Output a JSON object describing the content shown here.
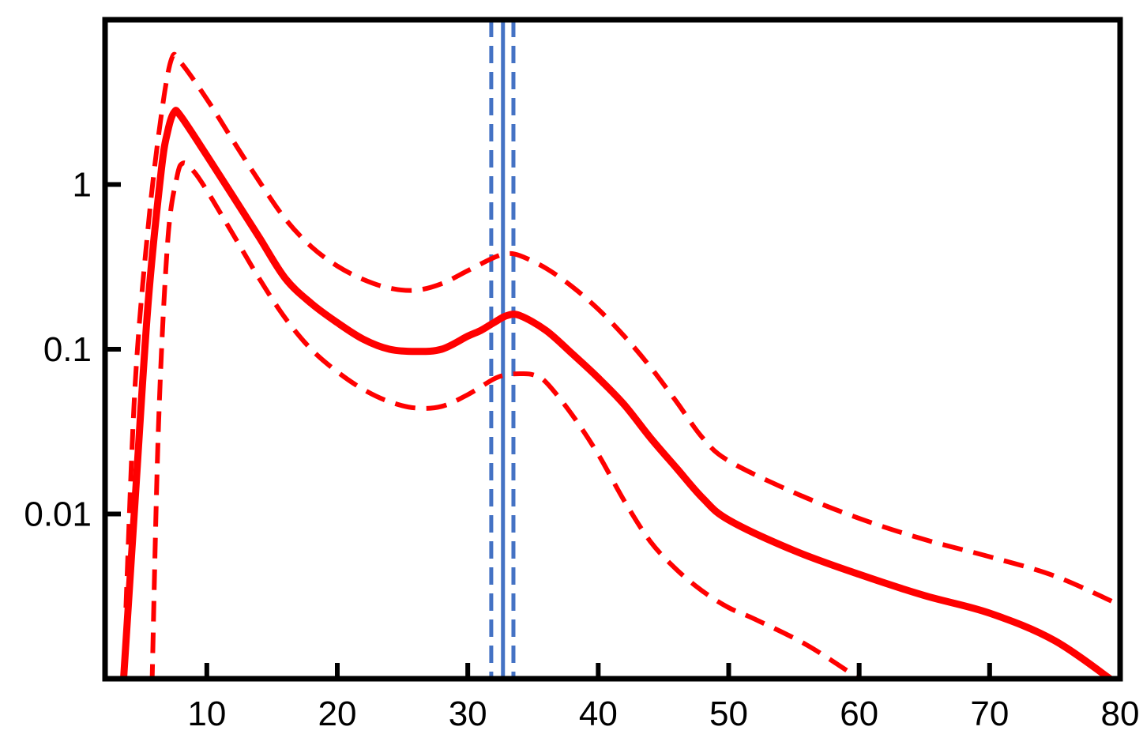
{
  "chart_data": {
    "type": "line",
    "title": "",
    "xlabel": "",
    "ylabel": "",
    "xscale": "linear",
    "yscale": "log",
    "xlim": [
      2.2,
      80
    ],
    "ylim": [
      0.001,
      10
    ],
    "grid": false,
    "x_ticks": [
      {
        "value": 10,
        "label": "10"
      },
      {
        "value": 20,
        "label": "20"
      },
      {
        "value": 30,
        "label": "30"
      },
      {
        "value": 40,
        "label": "40"
      },
      {
        "value": 50,
        "label": "50"
      },
      {
        "value": 60,
        "label": "60"
      },
      {
        "value": 70,
        "label": "70"
      },
      {
        "value": 80,
        "label": "80"
      }
    ],
    "y_ticks": [
      {
        "value": 0.01,
        "label": "0.01"
      },
      {
        "value": 0.1,
        "label": "0.1"
      },
      {
        "value": 1,
        "label": "1"
      }
    ],
    "series": [
      {
        "role": "central",
        "color": "#ff0000",
        "style": "solid",
        "points": [
          [
            3.6,
            0.00094
          ],
          [
            4.5,
            0.012
          ],
          [
            5.5,
            0.19
          ],
          [
            6.5,
            1.2
          ],
          [
            7,
            2.1
          ],
          [
            7.5,
            2.75
          ],
          [
            8,
            2.6
          ],
          [
            10,
            1.5
          ],
          [
            12,
            0.85
          ],
          [
            14,
            0.48
          ],
          [
            16,
            0.27
          ],
          [
            18,
            0.19
          ],
          [
            20,
            0.145
          ],
          [
            22,
            0.115
          ],
          [
            24,
            0.1
          ],
          [
            26,
            0.097
          ],
          [
            28,
            0.1
          ],
          [
            30,
            0.12
          ],
          [
            31,
            0.13
          ],
          [
            32,
            0.145
          ],
          [
            33,
            0.16
          ],
          [
            34,
            0.16
          ],
          [
            36,
            0.13
          ],
          [
            38,
            0.094
          ],
          [
            40,
            0.067
          ],
          [
            42,
            0.046
          ],
          [
            44,
            0.029
          ],
          [
            46,
            0.019
          ],
          [
            48,
            0.0125
          ],
          [
            50,
            0.0092
          ],
          [
            55,
            0.006
          ],
          [
            60,
            0.0043
          ],
          [
            65,
            0.0032
          ],
          [
            70,
            0.0025
          ],
          [
            75,
            0.0017
          ],
          [
            80,
            0.0009
          ]
        ]
      },
      {
        "role": "upper band",
        "color": "#ff0000",
        "style": "dashed",
        "points": [
          [
            3.8,
            0.0027
          ],
          [
            4.5,
            0.06
          ],
          [
            5.5,
            0.55
          ],
          [
            6.5,
            2.6
          ],
          [
            7.3,
            5.8
          ],
          [
            8,
            5.5
          ],
          [
            10,
            3.3
          ],
          [
            12,
            1.85
          ],
          [
            14,
            1.05
          ],
          [
            16,
            0.62
          ],
          [
            18,
            0.42
          ],
          [
            20,
            0.32
          ],
          [
            22,
            0.265
          ],
          [
            24,
            0.235
          ],
          [
            26,
            0.228
          ],
          [
            28,
            0.25
          ],
          [
            30,
            0.3
          ],
          [
            32,
            0.36
          ],
          [
            33,
            0.38
          ],
          [
            34,
            0.37
          ],
          [
            36,
            0.31
          ],
          [
            38,
            0.24
          ],
          [
            40,
            0.175
          ],
          [
            42,
            0.12
          ],
          [
            44,
            0.078
          ],
          [
            46,
            0.048
          ],
          [
            48,
            0.029
          ],
          [
            50,
            0.021
          ],
          [
            55,
            0.0135
          ],
          [
            60,
            0.0094
          ],
          [
            65,
            0.007
          ],
          [
            70,
            0.0055
          ],
          [
            75,
            0.0042
          ],
          [
            80,
            0.0028
          ]
        ]
      },
      {
        "role": "lower band",
        "color": "#ff0000",
        "style": "dashed",
        "points": [
          [
            5.8,
            0.00092
          ],
          [
            6.3,
            0.035
          ],
          [
            7,
            0.45
          ],
          [
            7.7,
            1.1
          ],
          [
            8.2,
            1.35
          ],
          [
            9,
            1.2
          ],
          [
            10,
            0.92
          ],
          [
            12,
            0.5
          ],
          [
            14,
            0.27
          ],
          [
            16,
            0.155
          ],
          [
            18,
            0.1
          ],
          [
            20,
            0.073
          ],
          [
            22,
            0.057
          ],
          [
            24,
            0.048
          ],
          [
            26,
            0.044
          ],
          [
            28,
            0.045
          ],
          [
            30,
            0.053
          ],
          [
            32,
            0.066
          ],
          [
            33,
            0.07
          ],
          [
            34,
            0.071
          ],
          [
            35,
            0.07
          ],
          [
            36,
            0.063
          ],
          [
            38,
            0.04
          ],
          [
            40,
            0.023
          ],
          [
            42,
            0.012
          ],
          [
            44,
            0.0068
          ],
          [
            46,
            0.0046
          ],
          [
            48,
            0.0034
          ],
          [
            50,
            0.0027
          ],
          [
            52,
            0.0023
          ],
          [
            56,
            0.0016
          ],
          [
            60,
            0.001
          ]
        ]
      }
    ],
    "vertical_lines": [
      {
        "x": 31.8,
        "color": "#4472c4",
        "style": "dashed"
      },
      {
        "x": 32.7,
        "color": "#4472c4",
        "style": "solid"
      },
      {
        "x": 33.5,
        "color": "#4472c4",
        "style": "dashed"
      }
    ]
  }
}
